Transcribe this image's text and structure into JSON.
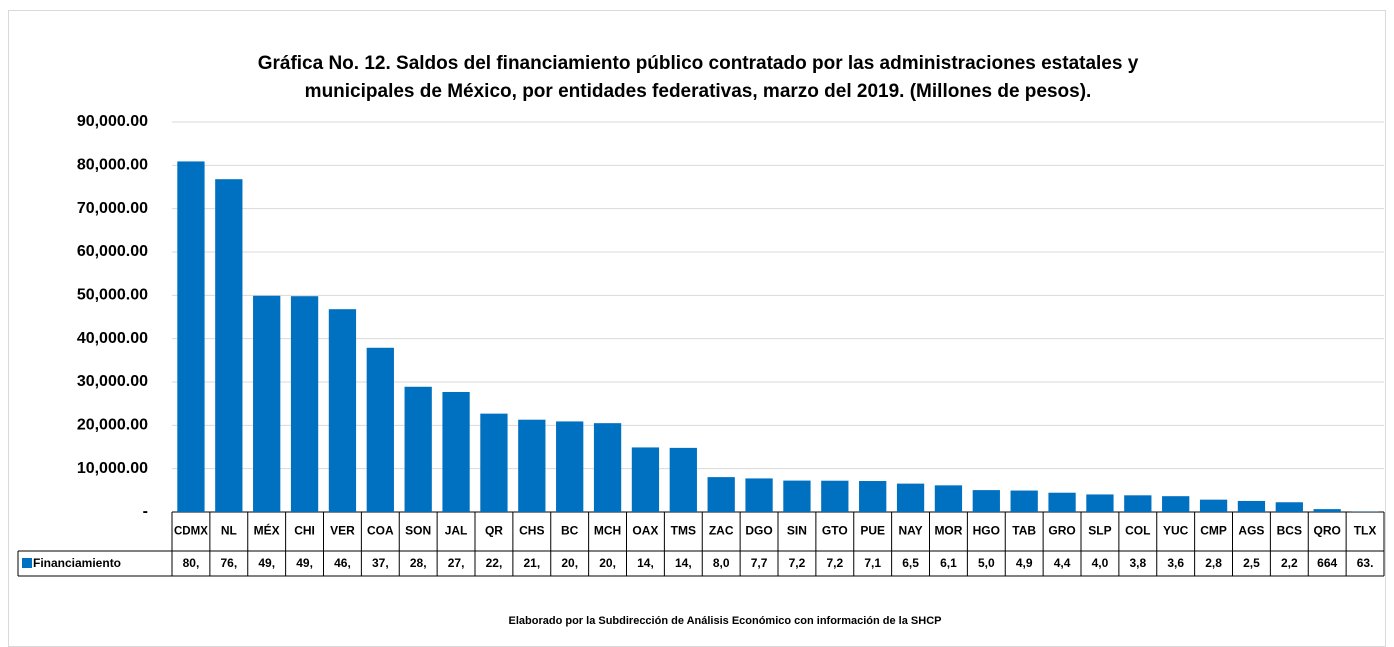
{
  "chart_data": {
    "type": "bar",
    "title": [
      "Gráfica No. 12. Saldos del financiamiento público contratado por las administraciones estatales y",
      "municipales de México, por entidades federativas, marzo del 2019. (Millones de pesos)."
    ],
    "footnote": "Elaborado por la Subdirección de Análisis Económico con información de la SHCP",
    "categories": [
      "CDMX",
      "NL",
      "MÉX",
      "CHI",
      "VER",
      "COA",
      "SON",
      "JAL",
      "QR",
      "CHS",
      "BC",
      "MCH",
      "OAX",
      "TMS",
      "ZAC",
      "DGO",
      "SIN",
      "GTO",
      "PUE",
      "NAY",
      "MOR",
      "HGO",
      "TAB",
      "GRO",
      "SLP",
      "COL",
      "YUC",
      "CMP",
      "AGS",
      "BCS",
      "QRO",
      "TLX"
    ],
    "series": [
      {
        "name": "Financiamiento",
        "color": "#0070c0",
        "values": [
          80900,
          76800,
          49900,
          49800,
          46800,
          37900,
          28900,
          27700,
          22700,
          21300,
          20900,
          20500,
          14900,
          14800,
          8050,
          7750,
          7250,
          7220,
          7150,
          6550,
          6150,
          5050,
          4950,
          4450,
          4050,
          3850,
          3650,
          2850,
          2550,
          2250,
          664,
          63
        ],
        "value_labels": [
          "80,",
          "76,",
          "49,",
          "49,",
          "46,",
          "37,",
          "28,",
          "27,",
          "22,",
          "21,",
          "20,",
          "20,",
          "14,",
          "14,",
          "8,0",
          "7,7",
          "7,2",
          "7,2",
          "7,1",
          "6,5",
          "6,1",
          "5,0",
          "4,9",
          "4,4",
          "4,0",
          "3,8",
          "3,6",
          "2,8",
          "2,5",
          "2,2",
          "664",
          "63."
        ]
      }
    ],
    "ylim": [
      0,
      90000
    ],
    "yticks": [
      {
        "value": 0,
        "label": "-"
      },
      {
        "value": 10000,
        "label": "10,000.00"
      },
      {
        "value": 20000,
        "label": "20,000.00"
      },
      {
        "value": 30000,
        "label": "30,000.00"
      },
      {
        "value": 40000,
        "label": "40,000.00"
      },
      {
        "value": 50000,
        "label": "50,000.00"
      },
      {
        "value": 60000,
        "label": "60,000.00"
      },
      {
        "value": 70000,
        "label": "70,000.00"
      },
      {
        "value": 80000,
        "label": "80,000.00"
      },
      {
        "value": 90000,
        "label": "90,000.00"
      }
    ],
    "grid": true
  }
}
